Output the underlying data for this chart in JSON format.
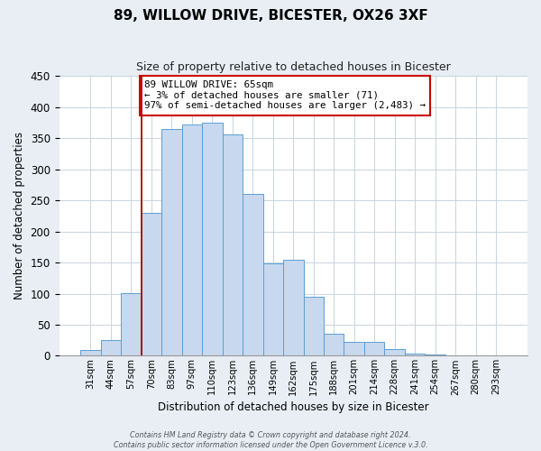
{
  "title": "89, WILLOW DRIVE, BICESTER, OX26 3XF",
  "subtitle": "Size of property relative to detached houses in Bicester",
  "xlabel": "Distribution of detached houses by size in Bicester",
  "ylabel": "Number of detached properties",
  "bar_labels": [
    "31sqm",
    "44sqm",
    "57sqm",
    "70sqm",
    "83sqm",
    "97sqm",
    "110sqm",
    "123sqm",
    "136sqm",
    "149sqm",
    "162sqm",
    "175sqm",
    "188sqm",
    "201sqm",
    "214sqm",
    "228sqm",
    "241sqm",
    "254sqm",
    "267sqm",
    "280sqm",
    "293sqm"
  ],
  "bar_values": [
    10,
    25,
    101,
    230,
    365,
    372,
    375,
    357,
    260,
    148,
    155,
    95,
    35,
    22,
    22,
    11,
    4,
    2,
    1,
    0,
    1
  ],
  "bar_color": "#c8d8ee",
  "bar_edge_color": "#5a9fd4",
  "vline_x": 3.0,
  "vline_color": "#aa0000",
  "annotation_text": "89 WILLOW DRIVE: 65sqm\n← 3% of detached houses are smaller (71)\n97% of semi-detached houses are larger (2,483) →",
  "annotation_box_color": "#ffffff",
  "annotation_box_edge": "#cc0000",
  "footer1": "Contains HM Land Registry data © Crown copyright and database right 2024.",
  "footer2": "Contains public sector information licensed under the Open Government Licence v.3.0.",
  "ylim": [
    0,
    450
  ],
  "yticks": [
    0,
    50,
    100,
    150,
    200,
    250,
    300,
    350,
    400,
    450
  ],
  "grid_color": "#c8d4e0",
  "fig_bg_color": "#e8eef4",
  "ax_bg_color": "#ffffff"
}
